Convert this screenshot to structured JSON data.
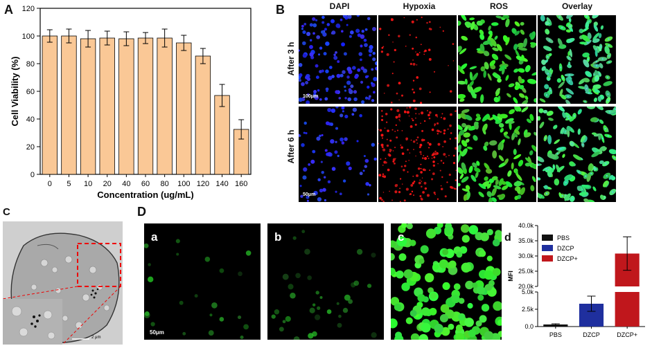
{
  "panels": {
    "A": "A",
    "B": "B",
    "C": "C",
    "D": "D",
    "d": "d"
  },
  "chart_data": [
    {
      "type": "bar",
      "panel": "A",
      "categories": [
        "0",
        "5",
        "10",
        "20",
        "40",
        "60",
        "80",
        "100",
        "120",
        "140",
        "160"
      ],
      "values": [
        100,
        100,
        98,
        98.5,
        98,
        98.5,
        98.5,
        95,
        85.5,
        57,
        32.5
      ],
      "errors": [
        4.5,
        5,
        6,
        5,
        5,
        4,
        6.5,
        5.5,
        5.5,
        8,
        7
      ],
      "xlabel": "Concentration (ug/mL)",
      "ylabel": "Cell Viability (%)",
      "ylim": [
        0,
        120
      ],
      "yticks": [
        "0",
        "20",
        "40",
        "60",
        "80",
        "100",
        "120"
      ],
      "color": "#FAC896"
    },
    {
      "type": "bar",
      "panel": "d",
      "categories": [
        "PBS",
        "DZCP",
        "DZCP+"
      ],
      "values": [
        300,
        3300,
        30800
      ],
      "errors": [
        100,
        1100,
        5500
      ],
      "colors": [
        "#111111",
        "#1f2f9e",
        "#c0171c"
      ],
      "legend": [
        "PBS",
        "DZCP",
        "DZCP+"
      ],
      "legend_position": "top-left",
      "ylabel": "MFI",
      "axis_break": [
        5000,
        20000
      ],
      "yticks_lower": [
        "0.0",
        "2.5k",
        "5.0k"
      ],
      "yticks_upper": [
        "20.0k",
        "25.0k",
        "30.0k",
        "35.0k",
        "40.0k"
      ]
    }
  ],
  "panel_b": {
    "columns": [
      "DAPI",
      "Hypoxia",
      "ROS",
      "Overlay"
    ],
    "rows": [
      "After 3 h",
      "After 6 h"
    ],
    "scales": [
      "100μm",
      "50μm"
    ]
  },
  "panel_c": {
    "scale": "2 μm"
  },
  "panel_D": {
    "sub": [
      "a",
      "b",
      "c"
    ],
    "scale": "50μm"
  }
}
